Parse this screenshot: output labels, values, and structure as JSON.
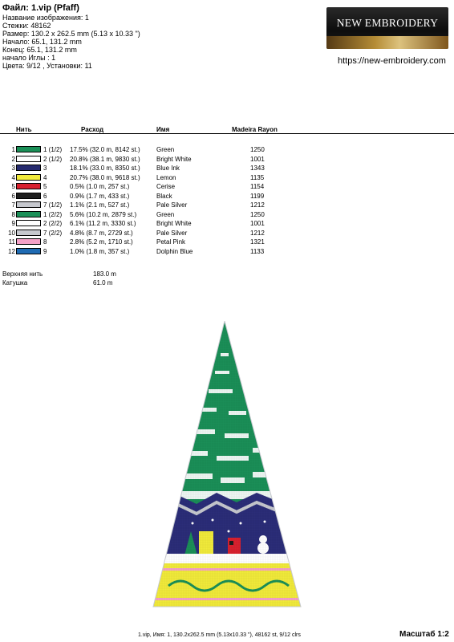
{
  "header": {
    "file_title": "Файл: 1.vip  (Pfaff)",
    "lines": [
      "Название изображения: 1",
      "Стежки: 48162",
      "Размер: 130.2 x 262.5 mm (5.13 x 10.33 \")",
      "Начало: 65.1, 131.2 mm",
      "Конец: 65.1, 131.2 mm",
      "начало Иглы : 1",
      "Цвета: 9/12 , Установки: 11"
    ]
  },
  "logo": {
    "text": "NEW EMBROIDERY"
  },
  "site_url": "https://new-embroidery.com",
  "table": {
    "headers": {
      "thread": "Нить",
      "usage": "Расход",
      "name": "Имя",
      "brand": "Madeira Rayon"
    },
    "rows": [
      {
        "num": "1",
        "code": "1 (1/2)",
        "usage": "17.5% (32.0 m, 8142 st.)",
        "name": "Green",
        "madeira": "1250",
        "color": "#1a8f57"
      },
      {
        "num": "2",
        "code": "2 (1/2)",
        "usage": "20.8% (38.1 m, 9830 st.)",
        "name": "Bright White",
        "madeira": "1001",
        "color": "#ffffff"
      },
      {
        "num": "3",
        "code": "3",
        "usage": "18.1% (33.0 m, 8350 st.)",
        "name": "Blue Ink",
        "madeira": "1343",
        "color": "#252a6e"
      },
      {
        "num": "4",
        "code": "4",
        "usage": "20.7% (38.0 m, 9618 st.)",
        "name": "Lemon",
        "madeira": "1135",
        "color": "#f1ea3a"
      },
      {
        "num": "5",
        "code": "5",
        "usage": "0.5% (1.0 m, 257 st.)",
        "name": "Cerise",
        "madeira": "1154",
        "color": "#d9202e"
      },
      {
        "num": "6",
        "code": "6",
        "usage": "0.9% (1.7 m, 433 st.)",
        "name": "Black",
        "madeira": "1199",
        "color": "#1d1d1d"
      },
      {
        "num": "7",
        "code": "7 (1/2)",
        "usage": "1.1% (2.1 m, 527 st.)",
        "name": "Pale Silver",
        "madeira": "1212",
        "color": "#c6c8ce"
      },
      {
        "num": "8",
        "code": "1 (2/2)",
        "usage": "5.6% (10.2 m, 2879 st.)",
        "name": "Green",
        "madeira": "1250",
        "color": "#1a8f57"
      },
      {
        "num": "9",
        "code": "2 (2/2)",
        "usage": "6.1% (11.2 m, 3330 st.)",
        "name": "Bright White",
        "madeira": "1001",
        "color": "#ffffff"
      },
      {
        "num": "10",
        "code": "7 (2/2)",
        "usage": "4.8% (8.7 m, 2729 st.)",
        "name": "Pale Silver",
        "madeira": "1212",
        "color": "#c6c8ce"
      },
      {
        "num": "11",
        "code": "8",
        "usage": "2.8% (5.2 m, 1710 st.)",
        "name": "Petal Pink",
        "madeira": "1321",
        "color": "#f5a1c7"
      },
      {
        "num": "12",
        "code": "9",
        "usage": "1.0% (1.8 m, 357 st.)",
        "name": "Dolphin Blue",
        "madeira": "1133",
        "color": "#1f6bb3"
      }
    ]
  },
  "totals": {
    "top_thread_label": "Верхняя нить",
    "top_thread_value": "183.0 m",
    "bobbin_label": "Катушка",
    "bobbin_value": "61.0 m"
  },
  "footer": {
    "summary": "1.vip, Имя: 1, 130.2x262.5 mm (5.13x10.33 \"), 48162 st, 9/12 clrs",
    "scale": "Масштаб 1:2"
  }
}
